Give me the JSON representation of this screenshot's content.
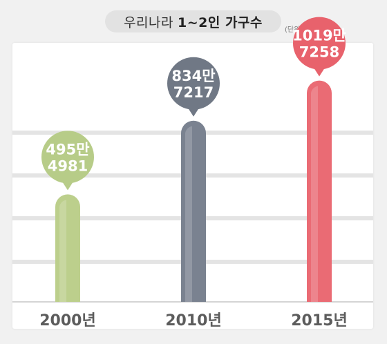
{
  "title": {
    "prefix": "우리나라",
    "bold": "1~2인 가구수"
  },
  "unit_note": "(단위 : 가구)",
  "colors": {
    "background": "#f1f1f1",
    "panel": "#ffffff",
    "gridline": "#e4e4e4",
    "baseline": "#d4d4d4",
    "axis_text": "#5c5c5c"
  },
  "chart_data": {
    "type": "bar",
    "title": "우리나라 1~2인 가구수",
    "unit": "(단위 : 가구)",
    "categories": [
      "2000년",
      "2010년",
      "2015년"
    ],
    "values": [
      4954981,
      8347217,
      10197258
    ],
    "labels": [
      [
        "495만",
        "4981"
      ],
      [
        "834만",
        "7217"
      ],
      [
        "1019만",
        "7258"
      ]
    ],
    "bar_colors": [
      "#bccf8c",
      "#7a8290",
      "#ea6b74"
    ],
    "bubble_colors": [
      "#b7cc88",
      "#707885",
      "#e8626c"
    ],
    "ylim": [
      0,
      12000000
    ],
    "grid": true
  }
}
